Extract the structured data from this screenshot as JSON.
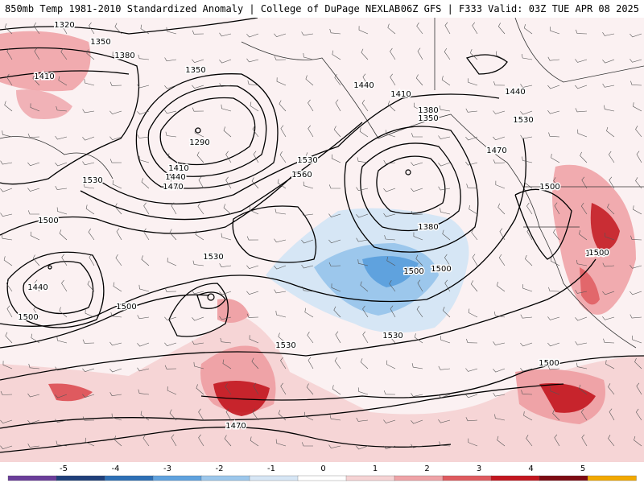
{
  "header": {
    "left_title": "850mb Temp 1981-2010 Standardized Anomaly | College of DuPage NEXLAB",
    "right_title": "06Z GFS | F333 Valid: 03Z TUE APR 08 2025"
  },
  "contour_labels": [
    "1320",
    "1350",
    "1380",
    "1410",
    "1350",
    "1290",
    "1410",
    "1440",
    "1470",
    "1530",
    "1500",
    "1440",
    "1500",
    "1530",
    "1560",
    "1530",
    "1500",
    "1500",
    "1440",
    "1410",
    "1380",
    "1350",
    "1380",
    "1500",
    "1530",
    "1470",
    "1500",
    "1500",
    "1530",
    "1500",
    "1470",
    "1440",
    "1500",
    "1530"
  ],
  "colorbar": {
    "tick_labels": [
      "-5",
      "-4",
      "-3",
      "-2",
      "-1",
      "0",
      "1",
      "2",
      "3",
      "4",
      "5"
    ],
    "colors": [
      "#6a3d9a",
      "#1f3f7a",
      "#2c6fb5",
      "#5fa2de",
      "#9cc7ec",
      "#d6e6f5",
      "#ffffff",
      "#f6d3d4",
      "#efa3a7",
      "#df5a5f",
      "#c2161f",
      "#7d0b12",
      "#f2a900"
    ]
  }
}
